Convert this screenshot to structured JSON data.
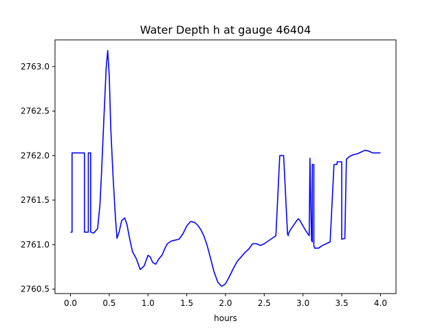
{
  "chart_data": {
    "type": "line",
    "title": "Water Depth h at gauge 46404",
    "xlabel": "hours",
    "ylabel": "",
    "xlim": [
      -0.2,
      4.2
    ],
    "ylim": [
      2760.45,
      2763.3
    ],
    "grid": false,
    "x_ticks": [
      0.0,
      0.5,
      1.0,
      1.5,
      2.0,
      2.5,
      3.0,
      3.5,
      4.0
    ],
    "x_tick_labels": [
      "0.0",
      "0.5",
      "1.0",
      "1.5",
      "2.0",
      "2.5",
      "3.0",
      "3.5",
      "4.0"
    ],
    "y_ticks": [
      2760.5,
      2761.0,
      2761.5,
      2762.0,
      2762.5,
      2763.0
    ],
    "y_tick_labels": [
      "2760.5",
      "2761.0",
      "2761.5",
      "2762.0",
      "2762.5",
      "2763.0"
    ],
    "series": [
      {
        "color": "#0000ff",
        "x": [
          0.0,
          0.02,
          0.02,
          0.18,
          0.18,
          0.23,
          0.23,
          0.26,
          0.26,
          0.3,
          0.35,
          0.38,
          0.4,
          0.43,
          0.46,
          0.48,
          0.5,
          0.52,
          0.55,
          0.58,
          0.6,
          0.63,
          0.66,
          0.7,
          0.73,
          0.76,
          0.8,
          0.85,
          0.9,
          0.95,
          1.0,
          1.03,
          1.06,
          1.1,
          1.14,
          1.18,
          1.22,
          1.25,
          1.3,
          1.35,
          1.4,
          1.45,
          1.5,
          1.55,
          1.6,
          1.64,
          1.68,
          1.72,
          1.76,
          1.8,
          1.85,
          1.9,
          1.95,
          2.0,
          2.05,
          2.1,
          2.15,
          2.2,
          2.25,
          2.3,
          2.35,
          2.4,
          2.45,
          2.5,
          2.55,
          2.6,
          2.65,
          2.7,
          2.75,
          2.8,
          2.8,
          2.81,
          2.81,
          2.84,
          2.88,
          2.92,
          2.94,
          2.96,
          3.0,
          3.04,
          3.08,
          3.09,
          3.09,
          3.11,
          3.12,
          3.12,
          3.14,
          3.14,
          3.15,
          3.15,
          3.2,
          3.25,
          3.3,
          3.35,
          3.4,
          3.44,
          3.44,
          3.5,
          3.5,
          3.54,
          3.54,
          3.56,
          3.6,
          3.65,
          3.7,
          3.75,
          3.8,
          3.85,
          3.9,
          3.95,
          4.0
        ],
        "y": [
          2761.14,
          2761.14,
          2762.03,
          2762.03,
          2761.14,
          2761.14,
          2762.03,
          2762.03,
          2761.14,
          2761.13,
          2761.18,
          2761.45,
          2761.8,
          2762.4,
          2762.98,
          2763.18,
          2762.9,
          2762.3,
          2761.75,
          2761.3,
          2761.07,
          2761.15,
          2761.27,
          2761.3,
          2761.22,
          2761.08,
          2760.92,
          2760.84,
          2760.72,
          2760.76,
          2760.88,
          2760.86,
          2760.8,
          2760.78,
          2760.84,
          2760.88,
          2760.96,
          2761.01,
          2761.04,
          2761.05,
          2761.06,
          2761.12,
          2761.21,
          2761.26,
          2761.25,
          2761.22,
          2761.17,
          2761.1,
          2761.0,
          2760.87,
          2760.7,
          2760.58,
          2760.53,
          2760.56,
          2760.64,
          2760.73,
          2760.81,
          2760.86,
          2760.91,
          2760.95,
          2761.01,
          2761.01,
          2760.99,
          2761.01,
          2761.04,
          2761.07,
          2761.1,
          2762.0,
          2762.0,
          2761.13,
          2761.12,
          2761.1,
          2761.12,
          2761.17,
          2761.22,
          2761.27,
          2761.29,
          2761.27,
          2761.21,
          2761.15,
          2761.1,
          2761.97,
          2761.97,
          2761.05,
          2761.03,
          2761.9,
          2761.9,
          2760.98,
          2760.97,
          2760.96,
          2760.96,
          2760.99,
          2761.01,
          2761.03,
          2761.9,
          2761.9,
          2761.93,
          2761.93,
          2761.06,
          2761.07,
          2761.07,
          2761.96,
          2761.99,
          2762.01,
          2762.02,
          2762.04,
          2762.06,
          2762.05,
          2762.03,
          2762.03,
          2762.03
        ]
      }
    ]
  }
}
